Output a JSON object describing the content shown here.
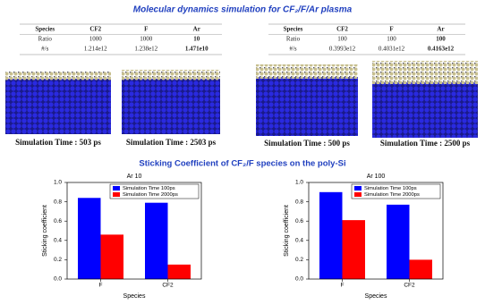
{
  "title": "Molecular dynamics simulation for CF₂/F/Ar plasma",
  "tables": [
    {
      "header": [
        "Species",
        "CF2",
        "F",
        "Ar"
      ],
      "rows": [
        [
          "Ratio",
          "1000",
          "1000",
          "10"
        ],
        [
          "#/s",
          "1.214e12",
          "1.238e12",
          "1.471e10"
        ]
      ]
    },
    {
      "header": [
        "Species",
        "CF2",
        "F",
        "Ar"
      ],
      "rows": [
        [
          "Ratio",
          "100",
          "100",
          "100"
        ],
        [
          "#/s",
          "0.3993e12",
          "0.4031e12",
          "0.4163e12"
        ]
      ]
    }
  ],
  "captions": [
    "Simulation Time : 503 ps",
    "Simulation Time : 2503 ps",
    "Simulation Time : 500 ps",
    "Simulation Time : 2500 ps"
  ],
  "section_title": "Sticking Coefficient of CF₂/F species on the poly-Si",
  "chart_data": [
    {
      "type": "bar",
      "title": "Ar 10",
      "categories": [
        "F",
        "CF2"
      ],
      "series": [
        {
          "name": "Simulation Time 100ps",
          "color": "#0000ff",
          "values": [
            0.84,
            0.79
          ]
        },
        {
          "name": "Simulation Time 2000ps",
          "color": "#ff0000",
          "values": [
            0.46,
            0.15
          ]
        }
      ],
      "ylim": [
        0,
        1
      ],
      "yticks": [
        {
          "value": 0,
          "label": "0.0"
        },
        0.2,
        0.4,
        0.6,
        0.8,
        {
          "value": 1,
          "label": "1.0"
        }
      ],
      "xlabel": "Species",
      "ylabel": "Sticking coefficient",
      "legend": "upper right"
    },
    {
      "type": "bar",
      "title": "Ar 100",
      "categories": [
        "F",
        "CF2"
      ],
      "series": [
        {
          "name": "Simulation Time 100ps",
          "color": "#0000ff",
          "values": [
            0.9,
            0.77
          ]
        },
        {
          "name": "Simulation Time 2000ps",
          "color": "#ff0000",
          "values": [
            0.61,
            0.2
          ]
        }
      ],
      "ylim": [
        0,
        1
      ],
      "yticks": [
        {
          "value": 0,
          "label": "0.0"
        },
        0.2,
        0.4,
        0.6,
        0.8,
        {
          "value": 1,
          "label": "1.0"
        }
      ],
      "xlabel": "Species",
      "ylabel": "Sticking coefficient",
      "legend": "upper right"
    }
  ]
}
